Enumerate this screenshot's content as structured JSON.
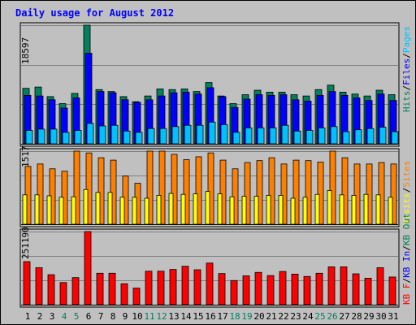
{
  "chart_data": [
    {
      "type": "bar",
      "title": "Daily usage for August 2012",
      "ymax_label": "18597",
      "ymax": 18597,
      "categories": [
        "1",
        "2",
        "3",
        "4",
        "5",
        "6",
        "7",
        "8",
        "9",
        "10",
        "11",
        "12",
        "13",
        "14",
        "15",
        "16",
        "17",
        "18",
        "19",
        "20",
        "21",
        "22",
        "23",
        "24",
        "25",
        "26",
        "27",
        "28",
        "29",
        "30",
        "31"
      ],
      "weekend_days": [
        "4",
        "5",
        "11",
        "12",
        "18",
        "19",
        "25",
        "26"
      ],
      "legend": [
        {
          "text": "Hits",
          "color": "#00805c"
        },
        {
          "text": "/",
          "color": "#000000"
        },
        {
          "text": "Files",
          "color": "#0000ff"
        },
        {
          "text": "/",
          "color": "#000000"
        },
        {
          "text": "Pages",
          "color": "#00c0ff"
        }
      ],
      "series": [
        {
          "name": "Hits",
          "color": "#00805c",
          "values": [
            8700,
            8900,
            7400,
            6300,
            7900,
            18597,
            8500,
            8200,
            7400,
            6600,
            7500,
            8600,
            8500,
            8600,
            8200,
            9600,
            7500,
            6300,
            7700,
            8400,
            8100,
            8100,
            7700,
            7500,
            8500,
            9200,
            8100,
            7800,
            7500,
            8400,
            7700
          ]
        },
        {
          "name": "Files",
          "color": "#0000ff",
          "values": [
            7600,
            7500,
            6900,
            5600,
            7200,
            14200,
            8200,
            8000,
            6900,
            6500,
            6900,
            7500,
            8000,
            8100,
            7800,
            8800,
            7400,
            5700,
            7000,
            7700,
            7600,
            7700,
            6900,
            6700,
            7600,
            8200,
            7600,
            7200,
            6800,
            7800,
            6800
          ]
        },
        {
          "name": "Pages",
          "color": "#00c0ff",
          "values": [
            2100,
            2300,
            2300,
            1800,
            2100,
            3200,
            2800,
            2900,
            2000,
            1800,
            2400,
            2400,
            2700,
            2900,
            2900,
            3400,
            3000,
            1800,
            2500,
            2500,
            2500,
            2900,
            2000,
            2100,
            2500,
            2700,
            1900,
            2200,
            2400,
            2600,
            1900
          ]
        }
      ]
    },
    {
      "type": "bar",
      "ymax_label": "1517",
      "ymax": 1517,
      "legend": [
        {
          "text": "Visits",
          "color": "#ffff00"
        },
        {
          "text": "/",
          "color": "#000000"
        },
        {
          "text": "Sites",
          "color": "#ff8000"
        }
      ],
      "series": [
        {
          "name": "Sites",
          "color": "#ff8000",
          "values": [
            1200,
            1250,
            1150,
            1100,
            1517,
            1480,
            1380,
            1330,
            1000,
            850,
            1517,
            1517,
            1450,
            1340,
            1400,
            1480,
            1330,
            1150,
            1280,
            1320,
            1380,
            1250,
            1330,
            1320,
            1290,
            1517,
            1380,
            1250,
            1250,
            1280,
            1250
          ]
        },
        {
          "name": "Visits",
          "color": "#ffff00",
          "values": [
            610,
            610,
            590,
            560,
            570,
            720,
            660,
            660,
            560,
            560,
            540,
            600,
            640,
            620,
            630,
            680,
            630,
            570,
            580,
            580,
            600,
            600,
            540,
            560,
            620,
            700,
            610,
            600,
            620,
            610,
            560
          ]
        }
      ]
    },
    {
      "type": "bar",
      "ymax_label": "251190",
      "ymax": 251190,
      "legend": [
        {
          "text": "KB F",
          "color": "#ff0000"
        },
        {
          "text": "/",
          "color": "#000000"
        },
        {
          "text": "KB In",
          "color": "#0000ff"
        },
        {
          "text": "/",
          "color": "#000000"
        },
        {
          "text": "KB Out",
          "color": "#00805c"
        }
      ],
      "series": [
        {
          "name": "KB F",
          "color": "#ff0000",
          "values": [
            148000,
            127000,
            103000,
            76000,
            93000,
            251190,
            108000,
            108000,
            72000,
            57000,
            115000,
            115000,
            121000,
            132000,
            120000,
            143000,
            107000,
            83000,
            99000,
            111000,
            100000,
            114000,
            105000,
            97000,
            108000,
            130000,
            130000,
            106000,
            91000,
            127000,
            95000
          ]
        }
      ]
    }
  ]
}
